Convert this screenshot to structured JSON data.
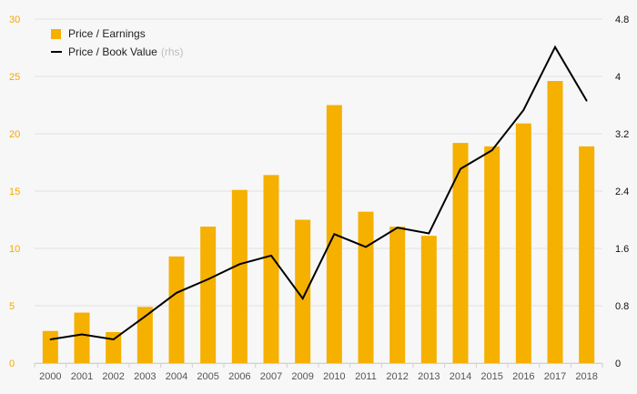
{
  "chart_data": {
    "type": "bar",
    "categories": [
      "2000",
      "2001",
      "2002",
      "2003",
      "2004",
      "2005",
      "2006",
      "2007",
      "2009",
      "2010",
      "2011",
      "2012",
      "2013",
      "2014",
      "2015",
      "2016",
      "2017",
      "2018"
    ],
    "series": [
      {
        "name": "Price / Earnings",
        "type": "bar",
        "axis": "left",
        "color": "#f5b000",
        "values": [
          2.8,
          4.4,
          2.7,
          4.9,
          9.3,
          11.9,
          15.1,
          16.4,
          12.5,
          22.5,
          13.2,
          11.9,
          11.1,
          19.2,
          18.9,
          20.9,
          24.6,
          18.9
        ]
      },
      {
        "name": "Price / Book Value",
        "name_note": "(rhs)",
        "type": "line",
        "axis": "right",
        "color": "#000000",
        "values": [
          0.33,
          0.4,
          0.33,
          0.65,
          0.98,
          1.17,
          1.38,
          1.5,
          0.9,
          1.8,
          1.62,
          1.89,
          1.81,
          2.71,
          2.97,
          3.53,
          4.41,
          3.66
        ]
      }
    ],
    "yleft": {
      "min": 0,
      "max": 30,
      "ticks": [
        "0",
        "5",
        "10",
        "15",
        "20",
        "25",
        "30"
      ]
    },
    "yright": {
      "min": 0,
      "max": 4.8,
      "ticks": [
        "0",
        "0.8",
        "1.6",
        "2.4",
        "3.2",
        "4",
        "4.8"
      ]
    },
    "grid": true,
    "legend_position": "top-left",
    "colors": {
      "left_axis": "#f5a800",
      "right_axis": "#111111",
      "grid": "#e2e2e2",
      "background": "#f7f7f7"
    }
  }
}
